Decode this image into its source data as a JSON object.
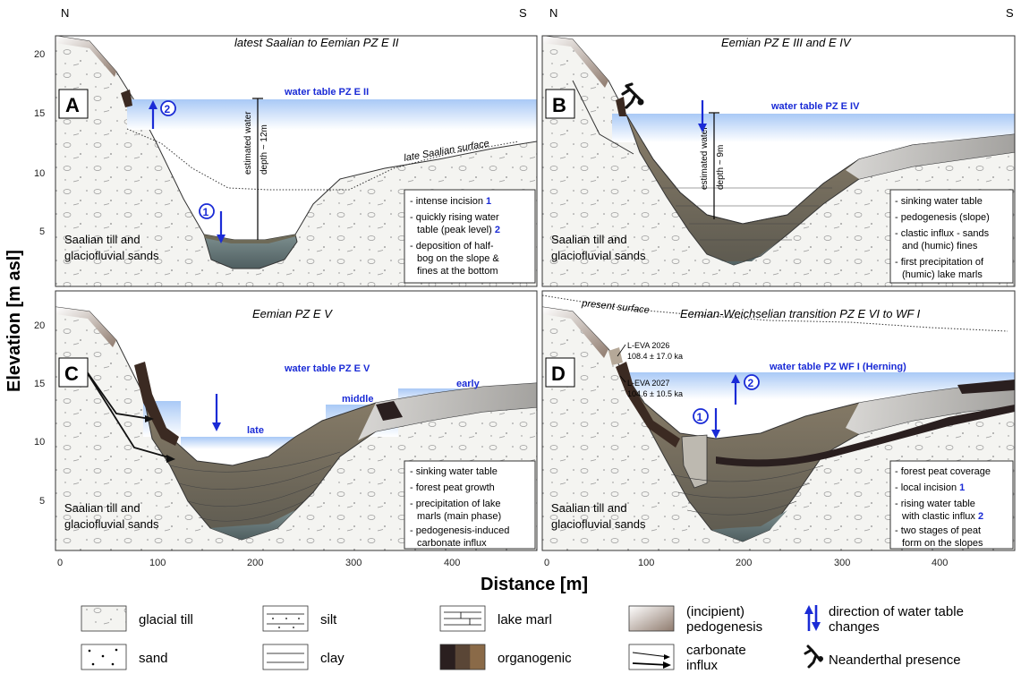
{
  "compass": {
    "north": "N",
    "south": "S"
  },
  "axes": {
    "ylabel": "Elevation [m asl]",
    "xlabel": "Distance [m]",
    "y_ticks": [
      "20",
      "15",
      "10",
      "5"
    ],
    "x_ticks": [
      "0",
      "100",
      "200",
      "300",
      "400"
    ]
  },
  "panels": {
    "A": {
      "letter": "A",
      "title": "latest Saalian to Eemian PZ E II",
      "water_table": "water table PZ E II",
      "depth_label": [
        "estimated water",
        "depth ~ 12m"
      ],
      "surface_label": "late Saalian surface",
      "marker_up": "2",
      "marker_down": "1",
      "till_label": [
        "Saalian till and",
        "glaciofluvial sands"
      ],
      "notes": [
        {
          "text": "intense incision",
          "num": "1"
        },
        {
          "text": "quickly rising water",
          "cont": "table (peak level)",
          "num": "2"
        },
        {
          "text": "deposition of half-",
          "cont": [
            "bog on the slope &",
            "fines at the bottom"
          ]
        }
      ]
    },
    "B": {
      "letter": "B",
      "title": "Eemian PZ E III and E IV",
      "water_table": "water table PZ E IV",
      "depth_label": [
        "estimated water",
        "depth ~ 9m"
      ],
      "till_label": [
        "Saalian till and",
        "glaciofluvial sands"
      ],
      "notes": [
        {
          "text": "sinking water table"
        },
        {
          "text": "pedogenesis (slope)"
        },
        {
          "text": "clastic influx - sands",
          "cont": [
            "and (humic) fines"
          ]
        },
        {
          "text": "first precipitation of",
          "cont": [
            "(humic) lake marls"
          ]
        }
      ]
    },
    "C": {
      "letter": "C",
      "title": "Eemian PZ E V",
      "water_table": "water table PZ E V",
      "stage_late": "late",
      "stage_middle": "middle",
      "stage_early": "early",
      "till_label": [
        "Saalian till and",
        "glaciofluvial sands"
      ],
      "notes": [
        {
          "text": "sinking water table"
        },
        {
          "text": "forest peat growth"
        },
        {
          "text": "precipitation of lake",
          "cont": [
            "marls (main phase)"
          ]
        },
        {
          "text": "pedogenesis-induced",
          "cont": [
            "carbonate influx"
          ]
        }
      ]
    },
    "D": {
      "letter": "D",
      "title": "Eemian-Weichselian transition PZ E VI to WF I",
      "present_surface": "present surface",
      "water_table": "water table PZ WF I (Herning)",
      "sample1": {
        "id": "L-EVA 2026",
        "age": "108.4 ± 17.0 ka"
      },
      "sample2": {
        "id": "L-EVA 2027",
        "age": "104.6 ± 10.5 ka"
      },
      "marker_up": "2",
      "marker_down": "1",
      "till_label": [
        "Saalian till and",
        "glaciofluvial sands"
      ],
      "notes": [
        {
          "text": "forest peat coverage"
        },
        {
          "text": "local incision",
          "num": "1"
        },
        {
          "text": "rising water table",
          "cont": "with clastic influx",
          "num": "2"
        },
        {
          "text": "two stages of peat",
          "cont": [
            "form on the slopes"
          ]
        }
      ]
    }
  },
  "legend": {
    "glacial_till": "glacial till",
    "sand": "sand",
    "silt": "silt",
    "clay": "clay",
    "lake_marl": "lake marl",
    "organogenic": "organogenic",
    "pedogenesis": [
      "(incipient)",
      "pedogenesis"
    ],
    "carbonate": [
      "carbonate",
      "influx"
    ],
    "water_change": [
      "direction of water table",
      "changes"
    ],
    "neanderthal": "Neanderthal presence"
  },
  "colors": {
    "water_blue": "#1a2bd6",
    "sky_light": "#dce9fb",
    "peat_dark": "#3b2a22",
    "marl_gray": "#6f6a5c",
    "till_fill": "#f2f2ee"
  }
}
